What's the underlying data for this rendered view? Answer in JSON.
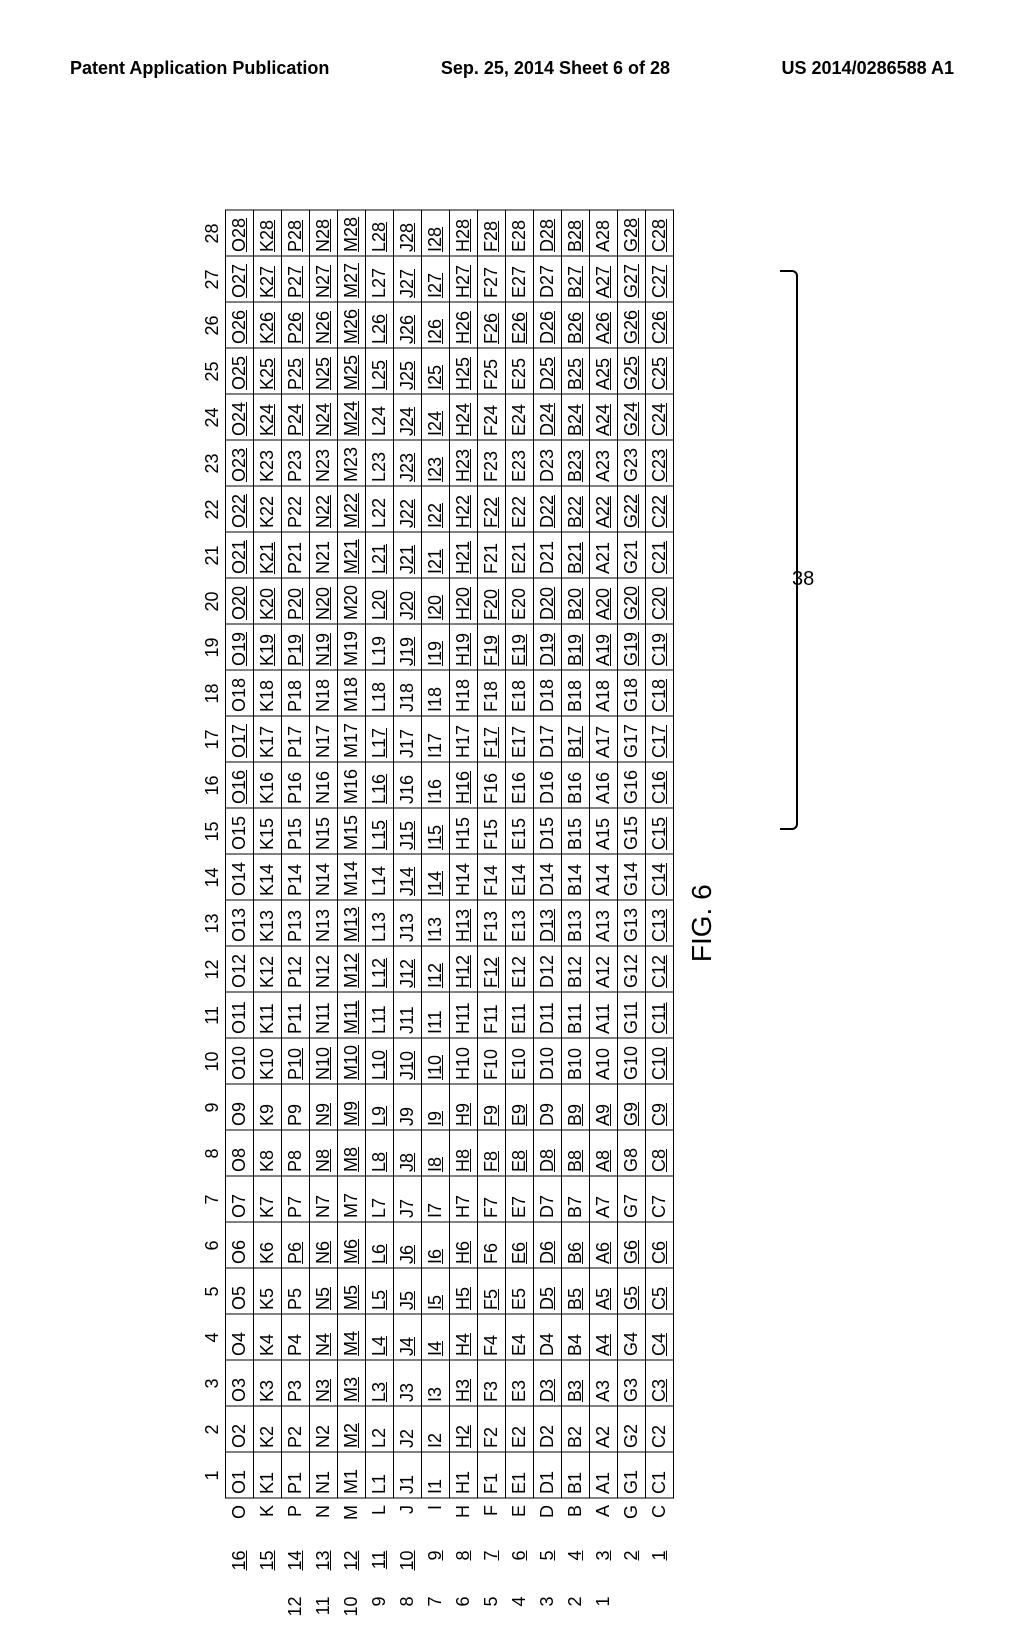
{
  "header": {
    "left": "Patent Application Publication",
    "center": "Sep. 25, 2014  Sheet 6 of 28",
    "right": "US 2014/0286588 A1"
  },
  "figure": {
    "caption": "FIG. 6",
    "callout": "38",
    "col_count": 28,
    "rows": [
      {
        "idx": "",
        "label_num": "16",
        "letter": "O",
        "underline_cols": [
          16,
          17,
          19,
          20,
          21,
          22,
          23,
          24,
          25,
          26,
          27,
          28
        ]
      },
      {
        "idx": "",
        "label_num": "15",
        "letter": "K",
        "underline_cols": [
          19,
          20,
          21,
          24,
          25,
          26,
          27,
          28
        ]
      },
      {
        "idx": "12",
        "label_num": "14",
        "letter": "P",
        "underline_cols": [
          6,
          10,
          19,
          20,
          24,
          25,
          26,
          27,
          28
        ]
      },
      {
        "idx": "11",
        "label_num": "13",
        "letter": "N",
        "underline_cols": [
          3,
          4,
          5,
          6,
          8,
          9,
          10,
          19,
          20,
          22,
          24,
          25,
          26,
          27,
          28
        ]
      },
      {
        "idx": "10",
        "label_num": "12",
        "letter": "M",
        "underline_cols": [
          2,
          3,
          4,
          5,
          6,
          8,
          9,
          10,
          11,
          12,
          13,
          21,
          22,
          24,
          25,
          26,
          27,
          28
        ]
      },
      {
        "idx": "9",
        "label_num": "11",
        "letter": "L",
        "underline_cols": [
          3,
          4,
          5,
          6,
          8,
          9,
          10,
          12,
          15,
          16,
          17,
          20,
          21,
          25,
          26,
          28
        ]
      },
      {
        "idx": "8",
        "label_num": "10",
        "letter": "J",
        "underline_cols": [
          4,
          5,
          6,
          8,
          10,
          12,
          14,
          15,
          19,
          20,
          21,
          22,
          23,
          24,
          25,
          26,
          27,
          28
        ]
      },
      {
        "idx": "7",
        "label_num": "9",
        "letter": "I",
        "underline_cols": [
          4,
          5,
          6,
          8,
          9,
          10,
          12,
          14,
          15,
          19,
          20,
          21,
          22,
          23,
          24,
          25,
          26,
          27,
          28
        ]
      },
      {
        "idx": "6",
        "label_num": "8",
        "letter": "H",
        "underline_cols": [
          2,
          3,
          4,
          5,
          6,
          8,
          9,
          12,
          13,
          16,
          19,
          20,
          21,
          22,
          23,
          24,
          25,
          26,
          27,
          28
        ]
      },
      {
        "idx": "5",
        "label_num": "7",
        "letter": "F",
        "underline_cols": [
          5,
          8,
          9,
          12,
          17,
          19,
          20,
          22,
          26,
          28
        ]
      },
      {
        "idx": "4",
        "label_num": "6",
        "letter": "E",
        "underline_cols": [
          6,
          8,
          9,
          19,
          26
        ]
      },
      {
        "idx": "3",
        "label_num": "5",
        "letter": "D",
        "underline_cols": [
          3,
          5,
          6,
          8,
          13,
          19,
          20,
          22,
          24,
          25,
          26,
          28
        ]
      },
      {
        "idx": "2",
        "label_num": "4",
        "letter": "B",
        "underline_cols": [
          3,
          5,
          6,
          8,
          9,
          17,
          19,
          20,
          21,
          22,
          23,
          24,
          25,
          26,
          27,
          28
        ]
      },
      {
        "idx": "1",
        "label_num": "3",
        "letter": "A",
        "underline_cols": [
          4,
          5,
          6,
          8,
          9,
          19,
          20,
          22,
          24,
          25,
          26,
          27
        ]
      },
      {
        "idx": "",
        "label_num": "2",
        "letter": "G",
        "underline_cols": [
          5,
          6,
          9,
          19,
          20,
          22,
          24,
          25,
          26,
          27,
          28
        ]
      },
      {
        "idx": "",
        "label_num": "1",
        "letter": "C",
        "underline_cols": [
          3,
          4,
          5,
          6,
          8,
          9,
          10,
          11,
          12,
          13,
          14,
          15,
          16,
          17,
          18,
          19,
          20,
          21,
          22,
          23,
          24,
          25,
          26,
          27,
          28
        ]
      }
    ],
    "colors": {
      "text": "#000000",
      "bg": "#ffffff",
      "border": "#000000"
    },
    "cell_font_size": 18,
    "header_font_size": 18,
    "caption_font_size": 28
  }
}
